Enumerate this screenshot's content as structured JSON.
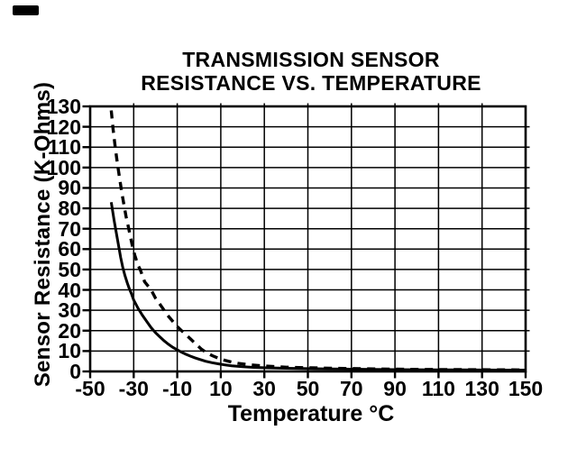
{
  "figure": {
    "title_line1": "TRANSMISSION SENSOR",
    "title_line2": "RESISTANCE VS. TEMPERATURE"
  },
  "chart_data": {
    "type": "line",
    "title": "TRANSMISSION SENSOR RESISTANCE VS. TEMPERATURE",
    "xlabel": "Temperature °C",
    "ylabel": "Sensor Resistance (K-Ohms)",
    "xlim": [
      -50,
      150
    ],
    "ylim": [
      0,
      130
    ],
    "x_ticks": [
      -50,
      -30,
      -10,
      10,
      30,
      50,
      70,
      90,
      110,
      130,
      150
    ],
    "y_ticks": [
      0,
      10,
      20,
      30,
      40,
      50,
      60,
      70,
      80,
      90,
      100,
      110,
      120,
      130
    ],
    "grid": true,
    "legend": "none",
    "line_color": "#000000",
    "background_color": "#ffffff",
    "series": [
      {
        "name": "solid curve",
        "style": "solid",
        "points": [
          [
            -40.3,
            83
          ],
          [
            -39,
            74
          ],
          [
            -38,
            68
          ],
          [
            -37,
            62
          ],
          [
            -36,
            56
          ],
          [
            -35,
            51
          ],
          [
            -34,
            47
          ],
          [
            -33,
            43.5
          ],
          [
            -32,
            40.5
          ],
          [
            -31,
            38
          ],
          [
            -30,
            35
          ],
          [
            -28,
            31
          ],
          [
            -26,
            27.5
          ],
          [
            -24,
            24.5
          ],
          [
            -22,
            21.5
          ],
          [
            -20,
            19
          ],
          [
            -18,
            17
          ],
          [
            -16,
            15
          ],
          [
            -14,
            13.3
          ],
          [
            -12,
            11.8
          ],
          [
            -10,
            10.6
          ],
          [
            -8,
            9.4
          ],
          [
            -6,
            8.4
          ],
          [
            -4,
            7.5
          ],
          [
            -2,
            6.7
          ],
          [
            0,
            6
          ],
          [
            3,
            5
          ],
          [
            6,
            4.3
          ],
          [
            9,
            3.7
          ],
          [
            12,
            3.2
          ],
          [
            15,
            2.8
          ],
          [
            20,
            2.3
          ],
          [
            25,
            2.0
          ],
          [
            30,
            1.8
          ],
          [
            40,
            1.55
          ],
          [
            50,
            1.35
          ],
          [
            60,
            1.2
          ],
          [
            70,
            1.1
          ],
          [
            80,
            1.0
          ],
          [
            90,
            0.9
          ],
          [
            100,
            0.85
          ],
          [
            110,
            0.8
          ],
          [
            120,
            0.75
          ],
          [
            130,
            0.7
          ],
          [
            140,
            0.68
          ],
          [
            150,
            0.65
          ]
        ]
      },
      {
        "name": "dashed curve",
        "style": "dashed",
        "points": [
          [
            -40.3,
            128
          ],
          [
            -39.5,
            119
          ],
          [
            -38.5,
            110
          ],
          [
            -37.5,
            102
          ],
          [
            -36.5,
            95
          ],
          [
            -35.5,
            88
          ],
          [
            -34.5,
            82
          ],
          [
            -33.5,
            76
          ],
          [
            -32.5,
            71
          ],
          [
            -31.5,
            66
          ],
          [
            -30.5,
            61
          ],
          [
            -29.5,
            57
          ],
          [
            -28,
            52
          ],
          [
            -27,
            50
          ],
          [
            -25,
            44
          ],
          [
            -22,
            40
          ],
          [
            -20,
            36
          ],
          [
            -18,
            33
          ],
          [
            -16,
            30
          ],
          [
            -14,
            27
          ],
          [
            -12,
            24.5
          ],
          [
            -10,
            22
          ],
          [
            -8,
            20
          ],
          [
            -6,
            18
          ],
          [
            -4,
            16
          ],
          [
            -2,
            14
          ],
          [
            0,
            12
          ],
          [
            1,
            11
          ],
          [
            3,
            9.5
          ],
          [
            6,
            7.8
          ],
          [
            9,
            6.4
          ],
          [
            12,
            5.4
          ],
          [
            15,
            4.6
          ],
          [
            18,
            4.0
          ],
          [
            22,
            3.4
          ],
          [
            26,
            3.0
          ],
          [
            30,
            2.7
          ],
          [
            35,
            2.4
          ],
          [
            40,
            2.1
          ],
          [
            50,
            1.8
          ],
          [
            60,
            1.6
          ],
          [
            70,
            1.4
          ],
          [
            80,
            1.25
          ],
          [
            90,
            1.1
          ],
          [
            100,
            1.0
          ],
          [
            110,
            0.95
          ],
          [
            120,
            0.9
          ],
          [
            130,
            0.85
          ],
          [
            140,
            0.8
          ],
          [
            150,
            0.75
          ]
        ]
      }
    ]
  }
}
